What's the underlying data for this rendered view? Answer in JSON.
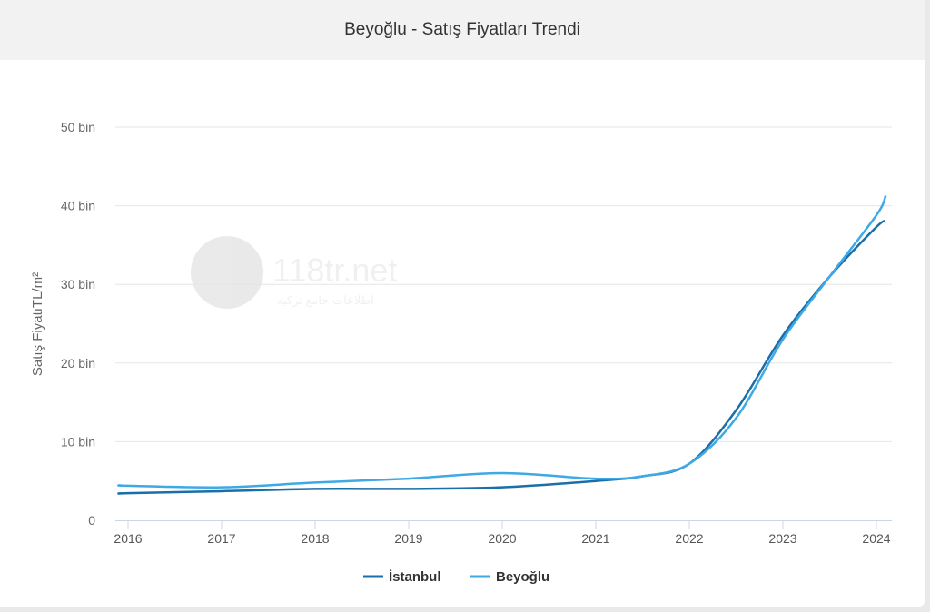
{
  "header": {
    "title": "Beyoğlu - Satış Fiyatları Trendi"
  },
  "watermark": {
    "text": "118tr.net",
    "subtext": "اطلاعات جامع ترکیه"
  },
  "chart_data": {
    "type": "line",
    "title": "Beyoğlu - Satış Fiyatları Trendi",
    "xlabel": "",
    "ylabel": "Satış FiyatıTL/m²",
    "ylim": [
      0,
      50000
    ],
    "xlim": [
      2015.9,
      2024.2
    ],
    "yticks": [
      {
        "v": 0,
        "label": "0"
      },
      {
        "v": 10000,
        "label": "10 bin"
      },
      {
        "v": 20000,
        "label": "20 bin"
      },
      {
        "v": 30000,
        "label": "30 bin"
      },
      {
        "v": 40000,
        "label": "40 bin"
      },
      {
        "v": 50000,
        "label": "50 bin"
      }
    ],
    "xticks": [
      "2016",
      "2017",
      "2018",
      "2019",
      "2020",
      "2021",
      "2022",
      "2023",
      "2024"
    ],
    "legend_position": "bottom-center",
    "grid": true,
    "series": [
      {
        "name": "İstanbul",
        "color": "#1b6fa8",
        "x": [
          2015.92,
          2016,
          2017,
          2018,
          2019,
          2020,
          2021,
          2021.5,
          2022,
          2022.5,
          2023,
          2023.5,
          2024,
          2024.1
        ],
        "y": [
          3400,
          3450,
          3700,
          4000,
          4000,
          4200,
          5000,
          5600,
          7200,
          14000,
          23500,
          31000,
          37300,
          38000
        ]
      },
      {
        "name": "Beyoğlu",
        "color": "#3fa9e6",
        "x": [
          2015.92,
          2016,
          2017,
          2018,
          2019,
          2020,
          2021,
          2021.5,
          2022,
          2022.5,
          2023,
          2023.5,
          2024,
          2024.1
        ],
        "y": [
          4450,
          4400,
          4200,
          4800,
          5300,
          6000,
          5300,
          5600,
          7200,
          13000,
          23000,
          31000,
          38800,
          41300
        ]
      }
    ]
  }
}
